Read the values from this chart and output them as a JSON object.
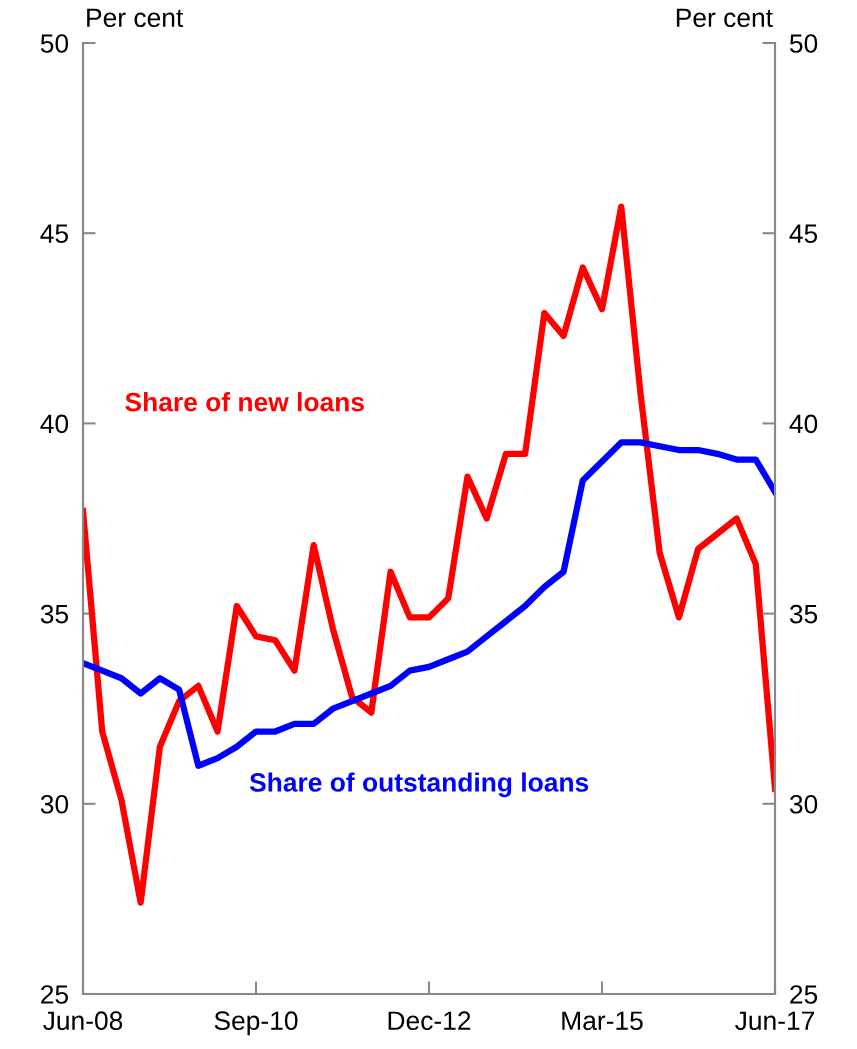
{
  "chart_data": {
    "type": "line",
    "categories": [
      "Jun-08",
      null,
      null,
      null,
      null,
      null,
      null,
      null,
      null,
      "Sep-10",
      null,
      null,
      null,
      null,
      null,
      null,
      null,
      null,
      "Dec-12",
      null,
      null,
      null,
      null,
      null,
      null,
      null,
      null,
      "Mar-15",
      null,
      null,
      null,
      null,
      null,
      null,
      null,
      null,
      "Jun-17"
    ],
    "series": [
      {
        "name": "Share of new loans",
        "color": "#ff0000",
        "values": [
          37.7,
          31.9,
          30.1,
          27.4,
          31.5,
          32.7,
          33.1,
          31.9,
          35.2,
          34.4,
          34.3,
          33.5,
          36.8,
          34.6,
          32.8,
          32.4,
          36.1,
          34.9,
          34.9,
          35.4,
          38.6,
          37.5,
          39.2,
          39.2,
          42.9,
          42.3,
          44.1,
          43.0,
          45.7,
          40.8,
          36.6,
          34.9,
          36.7,
          37.1,
          37.5,
          36.3,
          30.4
        ]
      },
      {
        "name": "Share of outstanding loans",
        "color": "#0000ff",
        "values": [
          33.7,
          33.5,
          33.3,
          32.9,
          33.3,
          33.0,
          31.0,
          31.2,
          31.5,
          31.9,
          31.9,
          32.1,
          32.1,
          32.5,
          32.7,
          32.9,
          33.1,
          33.5,
          33.6,
          33.8,
          34.0,
          34.4,
          34.8,
          35.2,
          35.7,
          36.1,
          38.5,
          39.0,
          39.5,
          39.5,
          39.4,
          39.3,
          39.3,
          39.2,
          39.05,
          39.05,
          38.2
        ]
      }
    ],
    "ylabel": "Per cent",
    "y2label": "Per cent",
    "ylim": [
      25,
      50
    ],
    "yticks": [
      25,
      30,
      35,
      40,
      45,
      50
    ],
    "y2lim": [
      25,
      50
    ],
    "y2ticks": [
      25,
      30,
      35,
      40,
      45,
      50
    ],
    "grid": false,
    "legend": false,
    "marker": "none",
    "line_style": "solid"
  }
}
